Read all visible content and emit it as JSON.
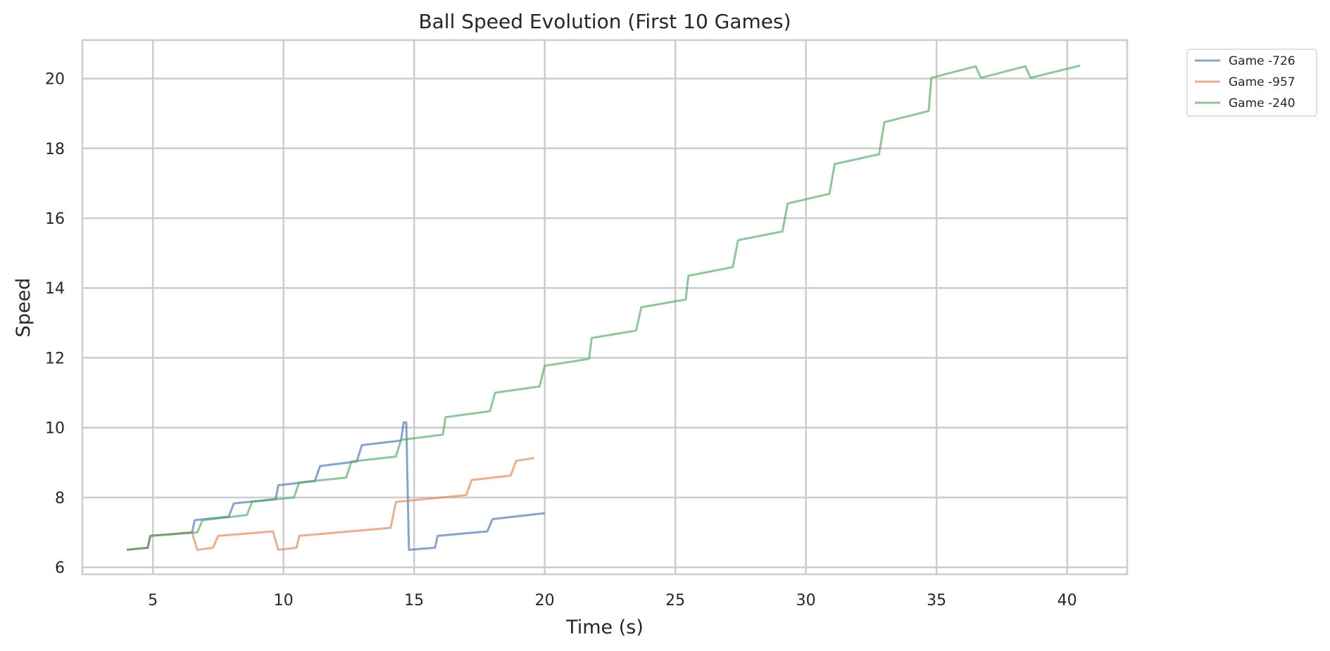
{
  "chart_data": {
    "type": "line",
    "title": "Ball Speed Evolution (First 10 Games)",
    "xlabel": "Time (s)",
    "ylabel": "Speed",
    "xlim": [
      2.3,
      42.3
    ],
    "ylim": [
      5.8,
      21.1
    ],
    "xticks": [
      5,
      10,
      15,
      20,
      25,
      30,
      35,
      40
    ],
    "yticks": [
      6,
      8,
      10,
      12,
      14,
      16,
      18,
      20
    ],
    "grid": true,
    "legend_position": "outside-top-right",
    "series": [
      {
        "name": "Game -726",
        "color": "#4c72b0",
        "points": [
          [
            4.0,
            6.5
          ],
          [
            4.8,
            6.56
          ],
          [
            4.9,
            6.9
          ],
          [
            6.5,
            7.0
          ],
          [
            6.6,
            7.35
          ],
          [
            7.9,
            7.45
          ],
          [
            8.1,
            7.83
          ],
          [
            9.7,
            7.95
          ],
          [
            9.8,
            8.35
          ],
          [
            11.2,
            8.47
          ],
          [
            11.4,
            8.9
          ],
          [
            12.8,
            9.03
          ],
          [
            13.0,
            9.5
          ],
          [
            14.5,
            9.63
          ],
          [
            14.6,
            10.15
          ],
          [
            14.7,
            10.15
          ],
          [
            14.8,
            6.5
          ],
          [
            15.8,
            6.56
          ],
          [
            15.9,
            6.9
          ],
          [
            17.8,
            7.03
          ],
          [
            18.0,
            7.38
          ],
          [
            20.0,
            7.55
          ]
        ]
      },
      {
        "name": "Game -957",
        "color": "#dd8452",
        "points": [
          [
            4.0,
            6.5
          ],
          [
            4.8,
            6.56
          ],
          [
            4.9,
            6.9
          ],
          [
            6.5,
            7.0
          ],
          [
            6.7,
            6.5
          ],
          [
            7.3,
            6.56
          ],
          [
            7.5,
            6.9
          ],
          [
            9.6,
            7.03
          ],
          [
            9.8,
            6.5
          ],
          [
            10.5,
            6.56
          ],
          [
            10.6,
            6.9
          ],
          [
            14.1,
            7.13
          ],
          [
            14.3,
            7.87
          ],
          [
            17.0,
            8.07
          ],
          [
            17.2,
            8.5
          ],
          [
            18.7,
            8.63
          ],
          [
            18.9,
            9.05
          ],
          [
            19.6,
            9.13
          ]
        ]
      },
      {
        "name": "Game -240",
        "color": "#55a868",
        "points": [
          [
            4.0,
            6.5
          ],
          [
            4.8,
            6.56
          ],
          [
            4.9,
            6.9
          ],
          [
            6.7,
            7.0
          ],
          [
            6.9,
            7.35
          ],
          [
            8.6,
            7.5
          ],
          [
            8.8,
            7.88
          ],
          [
            10.4,
            8.0
          ],
          [
            10.6,
            8.43
          ],
          [
            12.4,
            8.57
          ],
          [
            12.6,
            9.03
          ],
          [
            14.3,
            9.17
          ],
          [
            14.5,
            9.65
          ],
          [
            16.1,
            9.8
          ],
          [
            16.2,
            10.3
          ],
          [
            17.9,
            10.47
          ],
          [
            18.1,
            11.0
          ],
          [
            19.8,
            11.18
          ],
          [
            20.0,
            11.77
          ],
          [
            21.7,
            11.97
          ],
          [
            21.8,
            12.57
          ],
          [
            23.5,
            12.78
          ],
          [
            23.7,
            13.45
          ],
          [
            25.4,
            13.67
          ],
          [
            25.5,
            14.35
          ],
          [
            27.2,
            14.6
          ],
          [
            27.4,
            15.37
          ],
          [
            29.1,
            15.62
          ],
          [
            29.3,
            16.42
          ],
          [
            30.9,
            16.7
          ],
          [
            31.1,
            17.55
          ],
          [
            32.8,
            17.83
          ],
          [
            33.0,
            18.75
          ],
          [
            34.7,
            19.07
          ],
          [
            34.8,
            20.02
          ],
          [
            36.5,
            20.35
          ],
          [
            36.7,
            20.02
          ],
          [
            38.4,
            20.35
          ],
          [
            38.6,
            20.02
          ],
          [
            40.5,
            20.37
          ]
        ]
      }
    ]
  }
}
